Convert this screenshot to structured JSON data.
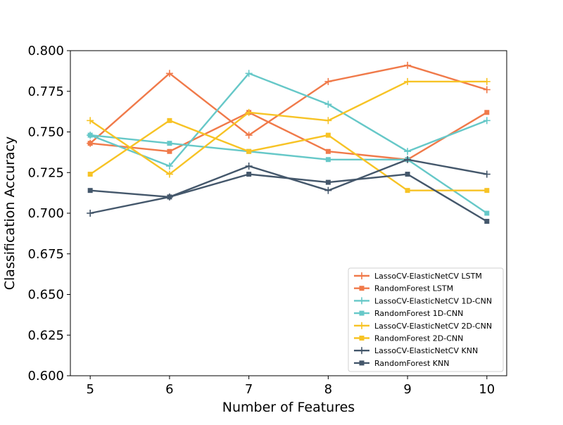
{
  "chart_data": {
    "type": "line",
    "title": "",
    "xlabel": "Number of Features",
    "ylabel": "Classification Accuracy",
    "x": [
      5,
      6,
      7,
      8,
      9,
      10
    ],
    "xticks": [
      "5",
      "6",
      "7",
      "8",
      "9",
      "10"
    ],
    "xlim": [
      4.75,
      10.25
    ],
    "ylim": [
      0.6,
      0.8
    ],
    "yticks": [
      "0.600",
      "0.625",
      "0.650",
      "0.675",
      "0.700",
      "0.725",
      "0.750",
      "0.775",
      "0.800"
    ],
    "grid": false,
    "legend_position": "lower-right",
    "series": [
      {
        "name": "LassoCV-ElasticNetCV LSTM",
        "color": "#F07A4A",
        "marker": "plus",
        "values": [
          0.743,
          0.786,
          0.748,
          0.781,
          0.791,
          0.776
        ]
      },
      {
        "name": "RandomForest LSTM",
        "color": "#F07A4A",
        "marker": "square",
        "values": [
          0.743,
          0.738,
          0.762,
          0.738,
          0.733,
          0.762
        ]
      },
      {
        "name": "LassoCV-ElasticNetCV 1D-CNN",
        "color": "#66C8C8",
        "marker": "plus",
        "values": [
          0.748,
          0.729,
          0.786,
          0.767,
          0.738,
          0.757
        ]
      },
      {
        "name": "RandomForest 1D-CNN",
        "color": "#66C8C8",
        "marker": "square",
        "values": [
          0.748,
          0.743,
          0.738,
          0.733,
          0.733,
          0.7
        ]
      },
      {
        "name": "LassoCV-ElasticNetCV 2D-CNN",
        "color": "#F7C325",
        "marker": "plus",
        "values": [
          0.757,
          0.724,
          0.762,
          0.757,
          0.781,
          0.781
        ]
      },
      {
        "name": "RandomForest 2D-CNN",
        "color": "#F7C325",
        "marker": "square",
        "values": [
          0.724,
          0.757,
          0.738,
          0.748,
          0.714,
          0.714
        ]
      },
      {
        "name": "LassoCV-ElasticNetCV KNN",
        "color": "#44576B",
        "marker": "plus",
        "values": [
          0.7,
          0.71,
          0.729,
          0.714,
          0.733,
          0.724
        ]
      },
      {
        "name": "RandomForest KNN",
        "color": "#44576B",
        "marker": "square",
        "values": [
          0.714,
          0.71,
          0.724,
          0.719,
          0.724,
          0.695
        ]
      }
    ]
  }
}
